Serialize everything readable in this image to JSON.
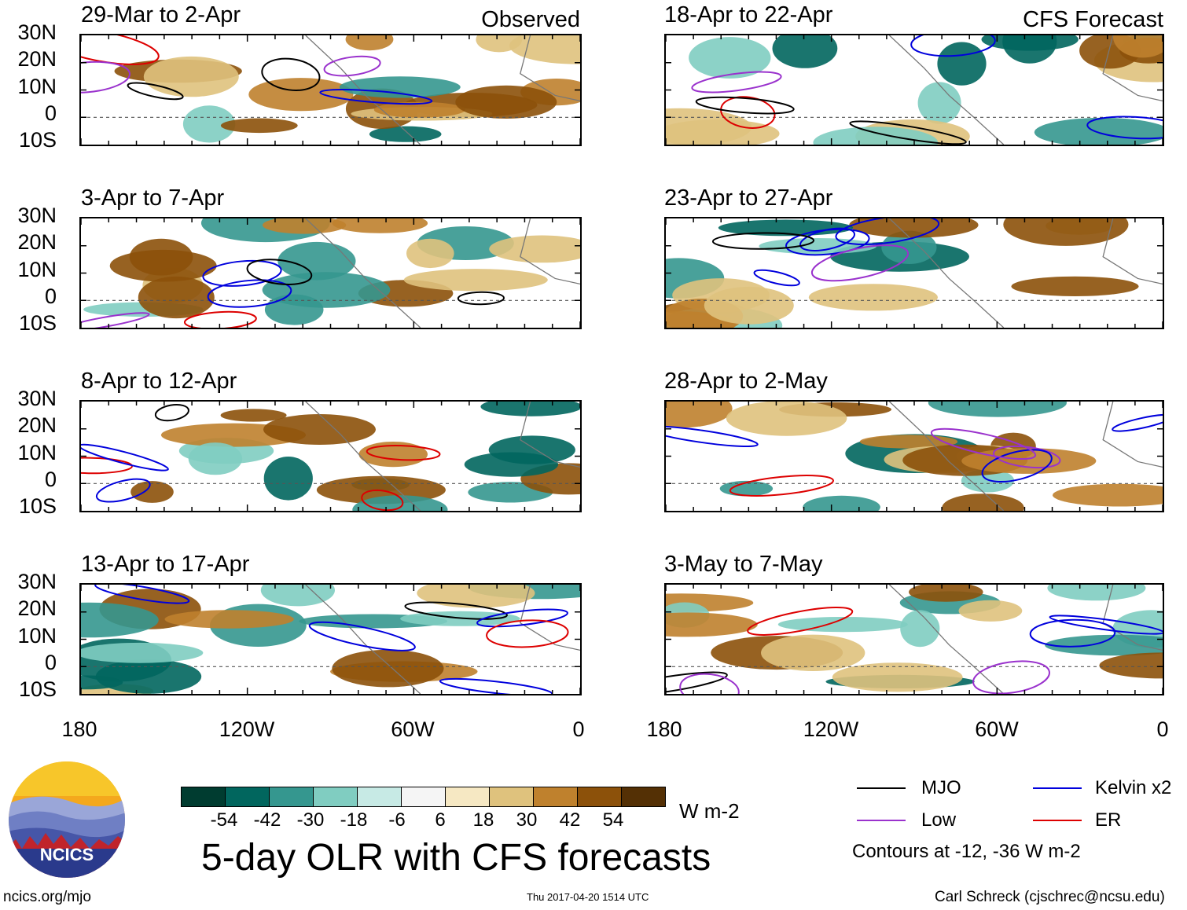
{
  "figure": {
    "title": "5-day OLR with CFS forecasts",
    "units": "W m-2",
    "website": "ncics.org/mjo",
    "timestamp": "Thu 2017-04-20 1514 UTC",
    "author": "Carl Schreck (cjschrec@ncsu.edu)",
    "logo_text": "NCICS",
    "observed_label": "Observed",
    "forecast_label": "CFS Forecast",
    "contour_note": "Contours at -12, -36 W m-2"
  },
  "chart_data": {
    "type": "heatmap",
    "variable": "OLR anomaly (5-day mean)",
    "units": "W m-2",
    "lat_ticks": [
      "30N",
      "20N",
      "10N",
      "0",
      "10S"
    ],
    "lon_ticks": [
      "180",
      "120W",
      "60W",
      "0"
    ],
    "lat_range": [
      -10,
      30
    ],
    "lon_range": [
      -180,
      0
    ],
    "colorbar": {
      "levels": [
        -54,
        -42,
        -30,
        -18,
        -6,
        6,
        18,
        30,
        42,
        54
      ],
      "tick_labels": [
        "-54",
        "-42",
        "-30",
        "-18",
        "-6",
        "6",
        "18",
        "30",
        "42",
        "54"
      ],
      "colors": [
        "#003c30",
        "#01665e",
        "#35978f",
        "#80cdc1",
        "#c7eae5",
        "#f5f5f5",
        "#f6e8c3",
        "#dfc27d",
        "#bf812d",
        "#8c510a",
        "#543005"
      ]
    },
    "legend": [
      {
        "name": "MJO",
        "color": "#000000"
      },
      {
        "name": "Kelvin x2",
        "color": "#0000dd"
      },
      {
        "name": "Low",
        "color": "#9a32cd"
      },
      {
        "name": "ER",
        "color": "#dd0000"
      }
    ],
    "panels": [
      {
        "period": "29-Mar to 2-Apr",
        "source": "Observed"
      },
      {
        "period": "3-Apr to 7-Apr",
        "source": "Observed"
      },
      {
        "period": "8-Apr to 12-Apr",
        "source": "Observed"
      },
      {
        "period": "13-Apr to 17-Apr",
        "source": "Observed"
      },
      {
        "period": "18-Apr to 22-Apr",
        "source": "CFS Forecast"
      },
      {
        "period": "23-Apr to 27-Apr",
        "source": "CFS Forecast"
      },
      {
        "period": "28-Apr to 2-May",
        "source": "CFS Forecast"
      },
      {
        "period": "3-May to 7-May",
        "source": "CFS Forecast"
      }
    ]
  }
}
